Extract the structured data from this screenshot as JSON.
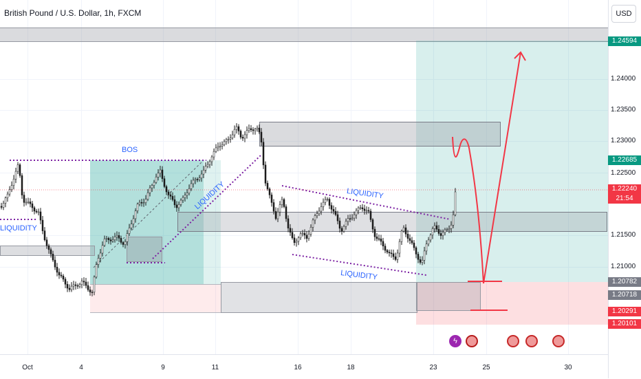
{
  "symbol_title": "British Pound / U.S. Dollar, 1h, FXCM",
  "currency_button": "USD",
  "price_ticks": [
    "1.24000",
    "1.23500",
    "1.23000",
    "1.22500",
    "1.21500",
    "1.21000"
  ],
  "price_labels": {
    "top_zone": "1.24594",
    "target": "1.22685",
    "current": "1.22240",
    "countdown": "21:54",
    "zone_upper": "1.20782",
    "zone_lower": "1.20718",
    "stop_upper": "1.20291",
    "stop_lower": "1.20101"
  },
  "time_labels": [
    "Oct",
    "4",
    "9",
    "11",
    "16",
    "18",
    "23",
    "25",
    "30"
  ],
  "annotations": {
    "bos": "BOS",
    "liquidity_left": "LIQUIDITY",
    "liquidity_diagonal": "LIQUIDITY",
    "liquidity_upper": "LIQUIDITY",
    "liquidity_lower": "LIQUIDITY"
  },
  "event_icons": [
    "lightning-icon",
    "uk-flag-icon",
    "us-flag-icon",
    "us-flag-icon",
    "us-flag-icon"
  ],
  "colors": {
    "up": "#26a69a",
    "down": "#ef5350",
    "candle": "#1b1b1b",
    "annotation": "#2962ff",
    "dotted": "#7b1fa2",
    "drawing": "#f23645",
    "green_zone": "#26a69a",
    "red_zone": "#f23645",
    "gray_zone": "#9598a1"
  }
}
